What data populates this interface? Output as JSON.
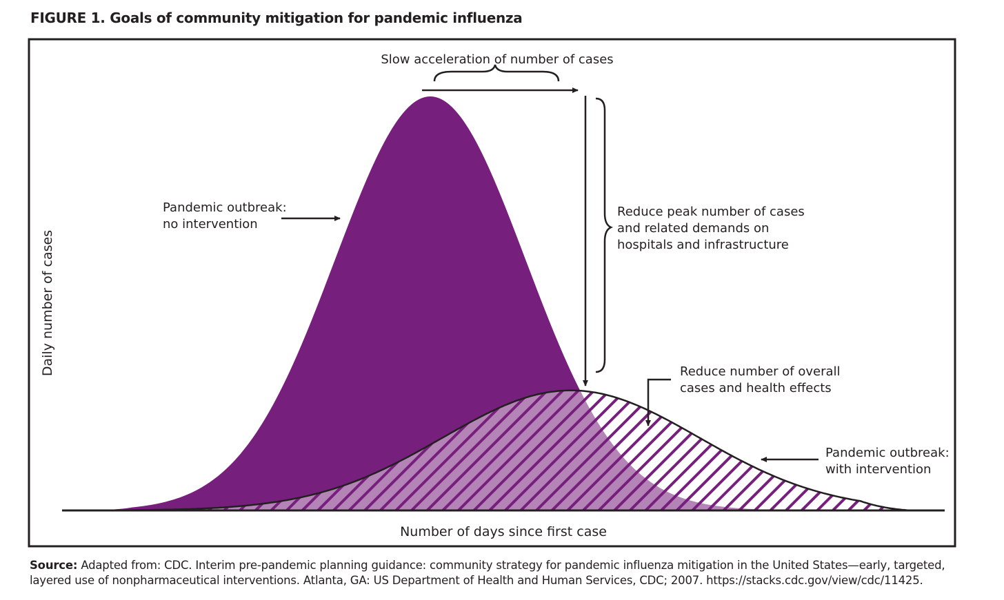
{
  "figure_title": "FIGURE 1. Goals of community mitigation for pandemic influenza",
  "source_label": "Source:",
  "source_text": " Adapted from: CDC. Interim pre-pandemic planning guidance: community strategy for pandemic influenza mitigation in the United States—early, targeted, layered use of nonpharmaceutical interventions. Atlanta, GA: US Department of Health and Human Services, CDC; 2007. https://stacks.cdc.gov/view/cdc/11425.",
  "colors": {
    "no_intervention_fill": "#771f7c",
    "hatch": "#771f7c",
    "frame": "#231f20"
  },
  "chart_data": {
    "type": "area",
    "xlabel": "Number of days since first case",
    "ylabel": "Daily number of cases",
    "axis_ticks": "none",
    "series": [
      {
        "name": "Pandemic outbreak: no intervention",
        "style": "solid purple fill",
        "peak_x": 0.42,
        "peak_y": 1.0,
        "spread": 0.115
      },
      {
        "name": "Pandemic outbreak: with intervention",
        "style": "hatched fill, black outline",
        "peak_x": 0.59,
        "peak_y": 0.29,
        "spread": 0.155
      }
    ],
    "annotations": [
      {
        "id": "slow",
        "lines": [
          "Slow acceleration of number of cases"
        ]
      },
      {
        "id": "peak",
        "lines": [
          "Reduce peak number of cases",
          "and related demands on",
          "hospitals and infrastructure"
        ]
      },
      {
        "id": "overall",
        "lines": [
          "Reduce number of overall",
          "cases and health effects"
        ]
      },
      {
        "id": "no_int",
        "lines": [
          "Pandemic outbreak:",
          "no intervention"
        ]
      },
      {
        "id": "with_int",
        "lines": [
          "Pandemic outbreak:",
          "with intervention"
        ]
      }
    ]
  }
}
